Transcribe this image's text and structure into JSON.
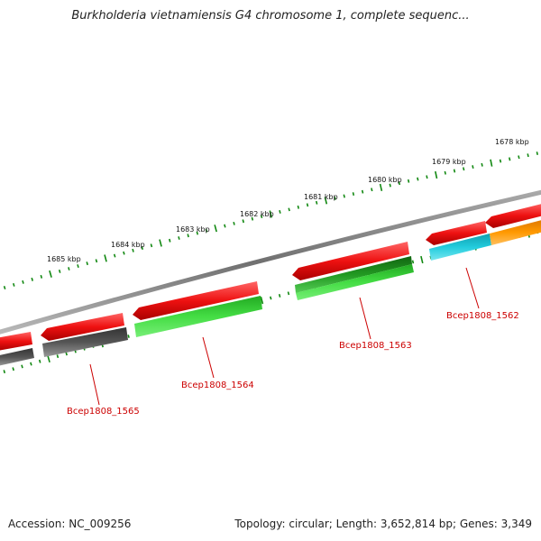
{
  "title": "Burkholderia vietnamiensis G4 chromosome 1, complete sequenc...",
  "footer": {
    "accession": "Accession: NC_009256",
    "summary": "Topology: circular; Length: 3,652,814 bp; Genes: 3,349"
  },
  "ticks": [
    {
      "label": "1678 kbp"
    },
    {
      "label": "1679 kbp"
    },
    {
      "label": "1680 kbp"
    },
    {
      "label": "1681 kbp"
    },
    {
      "label": "1682 kbp"
    },
    {
      "label": "1683 kbp"
    },
    {
      "label": "1684 kbp"
    },
    {
      "label": "1685 kbp"
    }
  ],
  "gene_labels": [
    {
      "label": "Bcep1808_1562"
    },
    {
      "label": "Bcep1808_1563"
    },
    {
      "label": "Bcep1808_1564"
    },
    {
      "label": "Bcep1808_1565"
    }
  ],
  "colors": {
    "backbone": "#808080",
    "gene_red": "#ee1111",
    "cds_green_light": "#33cc33",
    "cds_green_dark": "#229922",
    "cds_cyan": "#22ccdd",
    "cds_orange": "#ff9900",
    "cds_gray": "#555555",
    "tick_green": "#118811",
    "label_red": "#cc0000"
  }
}
